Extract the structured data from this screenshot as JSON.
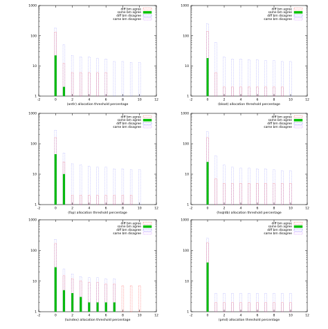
{
  "legend_labels": [
    "diff bm agree",
    "same bm agree",
    "diff bm disagree",
    "same bm disagree"
  ],
  "colors": {
    "diff_bm_agree": "#ff3b3b",
    "same_bm_agree": "#00c000",
    "diff_bm_disagree": "#3a3aff",
    "same_bm_disagree": "#c060ff"
  },
  "chart_data": [
    {
      "type": "bar",
      "xlabel": "(antlr) allocation threshold percentage",
      "xlim": [
        -2,
        12
      ],
      "ylim": [
        1,
        1000
      ],
      "y_scale": "log",
      "xticks": [
        -2,
        0,
        2,
        4,
        6,
        8,
        10,
        12
      ],
      "yticks": [
        1,
        10,
        100,
        1000
      ],
      "legend_position": "top-right",
      "x": [
        0,
        1,
        2,
        3,
        4,
        5,
        6,
        7,
        8,
        9,
        10
      ],
      "series": [
        {
          "name": "diff bm agree",
          "values": [
            130,
            12,
            6,
            6,
            6,
            6,
            6,
            0,
            0,
            0,
            0
          ]
        },
        {
          "name": "same bm agree",
          "values": [
            22,
            2,
            0,
            0,
            0,
            0,
            0,
            0,
            0,
            0,
            0
          ]
        },
        {
          "name": "diff bm disagree",
          "values": [
            180,
            50,
            22,
            20,
            20,
            18,
            17,
            14,
            14,
            13,
            13
          ]
        },
        {
          "name": "same bm disagree",
          "values": [
            0,
            0,
            0,
            0,
            0,
            0,
            0,
            0,
            0,
            0,
            0
          ]
        }
      ]
    },
    {
      "type": "bar",
      "xlabel": "(bloat) allocation threshold percentage",
      "xlim": [
        -2,
        12
      ],
      "ylim": [
        1,
        1000
      ],
      "y_scale": "log",
      "xticks": [
        -2,
        0,
        2,
        4,
        6,
        8,
        10,
        12
      ],
      "yticks": [
        1,
        10,
        100,
        1000
      ],
      "legend_position": "top-right",
      "x": [
        0,
        1,
        2,
        3,
        4,
        5,
        6,
        7,
        8,
        9,
        10
      ],
      "series": [
        {
          "name": "diff bm agree",
          "values": [
            140,
            6,
            2,
            2,
            2,
            2,
            2,
            2,
            2,
            2,
            0
          ]
        },
        {
          "name": "same bm agree",
          "values": [
            18,
            0,
            0,
            0,
            0,
            0,
            0,
            0,
            0,
            0,
            0
          ]
        },
        {
          "name": "diff bm disagree",
          "values": [
            250,
            60,
            20,
            17,
            17,
            16,
            16,
            15,
            15,
            14,
            14
          ]
        },
        {
          "name": "same bm disagree",
          "values": [
            0,
            0,
            0,
            0,
            0,
            0,
            0,
            0,
            0,
            0,
            0
          ]
        }
      ]
    },
    {
      "type": "bar",
      "xlabel": "(fop) allocation threshold percentage",
      "xlim": [
        -2,
        12
      ],
      "ylim": [
        1,
        1000
      ],
      "y_scale": "log",
      "xticks": [
        -2,
        0,
        2,
        4,
        6,
        8,
        10,
        12
      ],
      "yticks": [
        1,
        10,
        100,
        1000
      ],
      "legend_position": "top-right",
      "x": [
        0,
        1,
        2,
        3,
        4,
        5,
        6,
        7,
        8,
        9,
        10
      ],
      "series": [
        {
          "name": "diff bm agree",
          "values": [
            160,
            25,
            2,
            2,
            2,
            2,
            2,
            2,
            2,
            2,
            0
          ]
        },
        {
          "name": "same bm agree",
          "values": [
            45,
            10,
            0,
            0,
            0,
            0,
            0,
            0,
            0,
            0,
            0
          ]
        },
        {
          "name": "diff bm disagree",
          "values": [
            280,
            50,
            22,
            20,
            18,
            17,
            17,
            15,
            15,
            14,
            14
          ]
        },
        {
          "name": "same bm disagree",
          "values": [
            0,
            0,
            0,
            0,
            0,
            0,
            0,
            0,
            0,
            0,
            0
          ]
        }
      ]
    },
    {
      "type": "bar",
      "xlabel": "(hsqldb) allocation threshold percentage",
      "xlim": [
        -2,
        12
      ],
      "ylim": [
        1,
        1000
      ],
      "y_scale": "log",
      "xticks": [
        -2,
        0,
        2,
        4,
        6,
        8,
        10,
        12
      ],
      "yticks": [
        1,
        10,
        100,
        1000
      ],
      "legend_position": "top-right",
      "x": [
        0,
        1,
        2,
        3,
        4,
        5,
        6,
        7,
        8,
        9,
        10
      ],
      "series": [
        {
          "name": "diff bm agree",
          "values": [
            160,
            7,
            5,
            5,
            5,
            5,
            5,
            5,
            5,
            5,
            5
          ]
        },
        {
          "name": "same bm agree",
          "values": [
            25,
            0,
            0,
            0,
            0,
            0,
            0,
            0,
            0,
            0,
            0
          ]
        },
        {
          "name": "diff bm disagree",
          "values": [
            250,
            40,
            20,
            17,
            16,
            16,
            15,
            15,
            14,
            13,
            13
          ]
        },
        {
          "name": "same bm disagree",
          "values": [
            0,
            0,
            0,
            0,
            0,
            0,
            0,
            0,
            0,
            0,
            0
          ]
        }
      ]
    },
    {
      "type": "bar",
      "xlabel": "(luindex) allocation threshold percentage",
      "xlim": [
        -2,
        12
      ],
      "ylim": [
        1,
        1000
      ],
      "y_scale": "log",
      "xticks": [
        -2,
        0,
        2,
        4,
        6,
        8,
        10,
        12
      ],
      "yticks": [
        1,
        10,
        100,
        1000
      ],
      "legend_position": "top-right",
      "x": [
        0,
        1,
        2,
        3,
        4,
        5,
        6,
        7,
        8,
        9,
        10
      ],
      "series": [
        {
          "name": "diff bm agree",
          "values": [
            170,
            15,
            12,
            10,
            9,
            9,
            8,
            8,
            7,
            7,
            7
          ]
        },
        {
          "name": "same bm agree",
          "values": [
            28,
            5,
            4,
            3,
            2,
            2,
            2,
            2,
            0,
            0,
            0
          ]
        },
        {
          "name": "diff bm disagree",
          "values": [
            230,
            25,
            17,
            14,
            13,
            13,
            12,
            12,
            0,
            0,
            0
          ]
        },
        {
          "name": "same bm disagree",
          "values": [
            0,
            0,
            0,
            0,
            0,
            0,
            0,
            0,
            0,
            0,
            0
          ]
        }
      ]
    },
    {
      "type": "bar",
      "xlabel": "(pmd) allocation threshold percentage",
      "xlim": [
        -2,
        12
      ],
      "ylim": [
        1,
        1000
      ],
      "y_scale": "log",
      "xticks": [
        -2,
        0,
        2,
        4,
        6,
        8,
        10,
        12
      ],
      "yticks": [
        1,
        10,
        100,
        1000
      ],
      "legend_position": "top-right",
      "x": [
        0,
        1,
        2,
        3,
        4,
        5,
        6,
        7,
        8,
        9,
        10
      ],
      "series": [
        {
          "name": "diff bm agree",
          "values": [
            180,
            2,
            2,
            2,
            2,
            2,
            2,
            2,
            2,
            2,
            2
          ]
        },
        {
          "name": "same bm agree",
          "values": [
            40,
            0,
            0,
            0,
            0,
            0,
            0,
            0,
            0,
            0,
            0
          ]
        },
        {
          "name": "diff bm disagree",
          "values": [
            250,
            4,
            4,
            4,
            4,
            4,
            4,
            4,
            4,
            4,
            4
          ]
        },
        {
          "name": "same bm disagree",
          "values": [
            0,
            0,
            0,
            0,
            0,
            0,
            0,
            0,
            0,
            0,
            0
          ]
        }
      ]
    }
  ]
}
